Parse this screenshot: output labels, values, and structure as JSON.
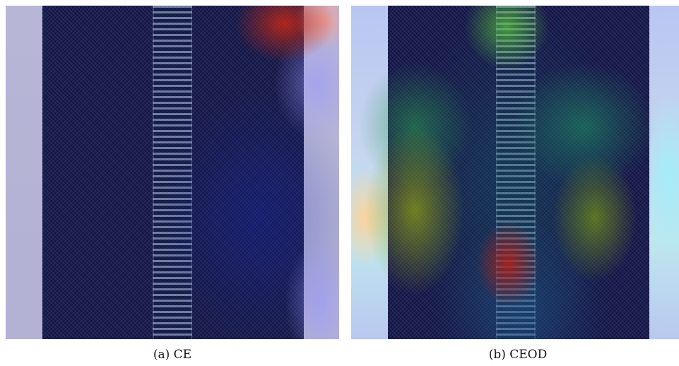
{
  "figure": {
    "panels": [
      {
        "id": "a",
        "caption": "(a) CE"
      },
      {
        "id": "b",
        "caption": "(b) CEOD"
      }
    ]
  }
}
